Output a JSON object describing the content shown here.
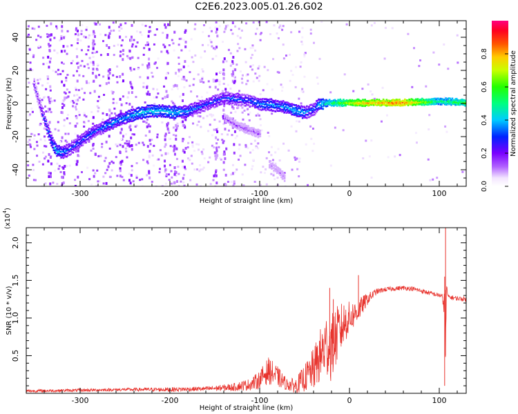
{
  "title": "C2E6.2023.005.01.26.G02",
  "chart_data": [
    {
      "type": "heatmap",
      "xlabel": "Height of straight line (km)",
      "ylabel": "Frequency (Hz)",
      "xlim": [
        -360,
        130
      ],
      "ylim": [
        -50,
        50
      ],
      "x_ticks": [
        -300,
        -200,
        -100,
        0,
        100
      ],
      "y_ticks": [
        -40,
        -20,
        0,
        20,
        40
      ],
      "colorbar": {
        "label": "Normalized spectral amplitude",
        "range": [
          0.0,
          1.0
        ],
        "ticks": [
          "0.0",
          "0.2",
          "0.4",
          "0.6",
          "0.8"
        ],
        "tick_values": [
          0.0,
          0.2,
          0.4,
          0.6,
          0.8
        ]
      },
      "ridges": [
        {
          "points": [
            [
              -352,
              12
            ],
            [
              -347,
              2
            ],
            [
              -340,
              -10
            ],
            [
              -333,
              -22
            ],
            [
              -327,
              -28
            ],
            [
              -320,
              -29
            ],
            [
              -312,
              -27
            ],
            [
              -300,
              -22
            ],
            [
              -290,
              -18
            ],
            [
              -280,
              -15
            ],
            [
              -268,
              -12
            ],
            [
              -255,
              -9
            ],
            [
              -240,
              -6
            ],
            [
              -225,
              -4
            ],
            [
              -210,
              -4
            ],
            [
              -195,
              -5
            ],
            [
              -180,
              -4
            ],
            [
              -165,
              -1
            ],
            [
              -150,
              2
            ],
            [
              -140,
              4
            ],
            [
              -125,
              3
            ],
            [
              -110,
              2
            ],
            [
              -100,
              0
            ],
            [
              -90,
              0
            ],
            [
              -80,
              -1
            ],
            [
              -70,
              -2
            ],
            [
              -60,
              -4
            ],
            [
              -50,
              -5
            ],
            [
              -40,
              -3
            ],
            [
              -35,
              0
            ],
            [
              -25,
              1
            ],
            [
              -10,
              1
            ],
            [
              0,
              1
            ],
            [
              20,
              1
            ],
            [
              60,
              1
            ],
            [
              100,
              2
            ],
            [
              130,
              1
            ]
          ],
          "amplitude": [
            0.2,
            0.2,
            0.3,
            0.35,
            0.4,
            0.35,
            0.3,
            0.3,
            0.3,
            0.3,
            0.35,
            0.35,
            0.4,
            0.4,
            0.4,
            0.4,
            0.35,
            0.3,
            0.3,
            0.3,
            0.3,
            0.3,
            0.35,
            0.35,
            0.35,
            0.35,
            0.4,
            0.35,
            0.3,
            0.4,
            0.5,
            0.6,
            0.7,
            0.8,
            0.85,
            0.5,
            0.6
          ]
        },
        {
          "points": [
            [
              -140,
              -8
            ],
            [
              -125,
              -13
            ],
            [
              -110,
              -16
            ],
            [
              -100,
              -18
            ]
          ],
          "amplitude": [
            0.15,
            0.15,
            0.15,
            0.15
          ]
        },
        {
          "points": [
            [
              -90,
              -36
            ],
            [
              -80,
              -40
            ],
            [
              -72,
              -45
            ]
          ],
          "amplitude": [
            0.1,
            0.1,
            0.1
          ]
        }
      ]
    },
    {
      "type": "line",
      "xlabel": "Height of straight line (km)",
      "ylabel": "SNR (10 * v/v)",
      "y_multiplier_label": "(x10",
      "y_multiplier_exp": "4",
      "y_multiplier_close": ")",
      "xlim": [
        -360,
        130
      ],
      "ylim": [
        0,
        2.2
      ],
      "x_ticks": [
        -300,
        -200,
        -100,
        0,
        100
      ],
      "y_ticks": [
        0.5,
        1.0,
        1.5,
        2.0
      ],
      "y_tick_labels": [
        "0.5",
        "1.0",
        "1.5",
        "2.0"
      ],
      "series": [
        {
          "color": "#e8342e",
          "x": [
            -360,
            -300,
            -250,
            -200,
            -160,
            -130,
            -110,
            -100,
            -95,
            -90,
            -80,
            -70,
            -60,
            -50,
            -40,
            -30,
            -25,
            -20,
            -15,
            -10,
            -5,
            0,
            5,
            10,
            15,
            20,
            25,
            30,
            40,
            50,
            60,
            70,
            80,
            90,
            100,
            103,
            105,
            106,
            107,
            108,
            110,
            115,
            120,
            130
          ],
          "y": [
            0.03,
            0.04,
            0.05,
            0.05,
            0.06,
            0.08,
            0.12,
            0.18,
            0.25,
            0.3,
            0.22,
            0.12,
            0.1,
            0.2,
            0.32,
            0.55,
            0.65,
            0.6,
            0.75,
            0.85,
            0.95,
            1.0,
            1.05,
            1.1,
            1.18,
            1.25,
            1.3,
            1.35,
            1.38,
            1.39,
            1.4,
            1.39,
            1.36,
            1.33,
            1.3,
            1.3,
            1.1,
            1.55,
            0.5,
            1.4,
            1.28,
            1.27,
            1.26,
            1.25
          ],
          "noise": [
            0.02,
            0.02,
            0.02,
            0.03,
            0.03,
            0.05,
            0.08,
            0.12,
            0.15,
            0.18,
            0.14,
            0.08,
            0.1,
            0.18,
            0.28,
            0.4,
            0.45,
            0.45,
            0.4,
            0.35,
            0.28,
            0.22,
            0.18,
            0.15,
            0.12,
            0.08,
            0.06,
            0.04,
            0.03,
            0.03,
            0.03,
            0.03,
            0.03,
            0.03,
            0.03,
            0.04,
            0.1,
            0.3,
            0.2,
            0.08,
            0.03,
            0.03,
            0.03,
            0.03
          ]
        }
      ],
      "spikes": [
        [
          -22,
          1.4
        ],
        [
          -18,
          1.25
        ],
        [
          10,
          1.57
        ],
        [
          107,
          2.2
        ],
        [
          106,
          0.1
        ]
      ]
    }
  ]
}
